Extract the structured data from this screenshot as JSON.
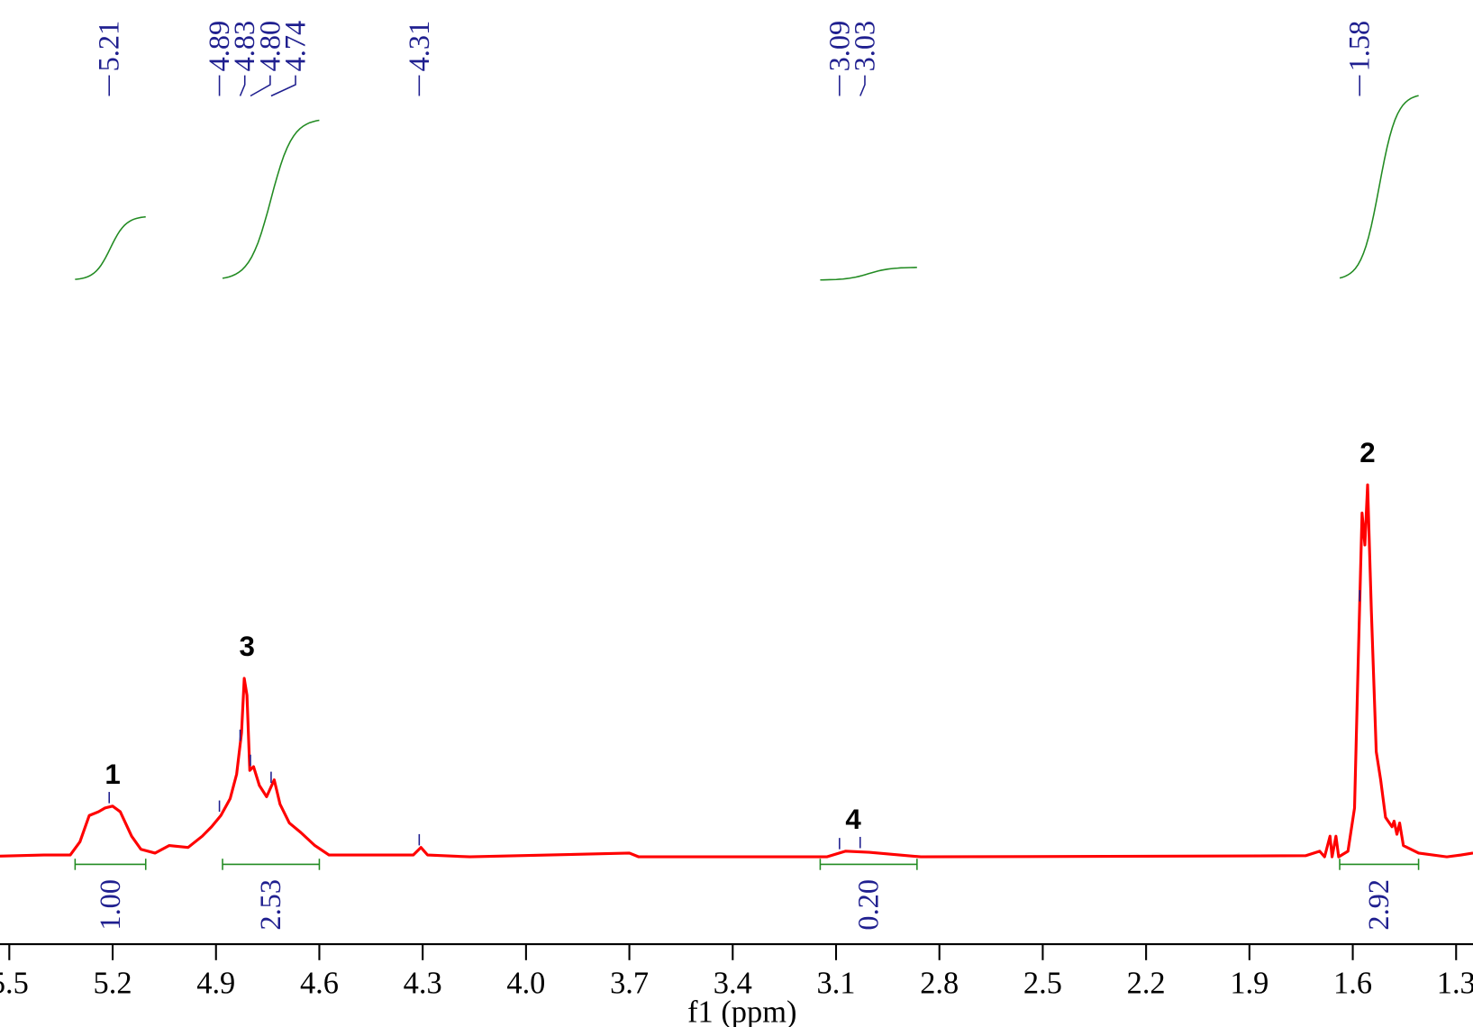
{
  "chart_data": {
    "type": "nmr",
    "xlabel": "f1 (ppm)",
    "xlim": [
      5.527,
      1.251
    ],
    "xticks": [
      5.5,
      5.2,
      4.9,
      4.6,
      4.3,
      {
        "value": 4,
        "label": "4.0"
      },
      3.7,
      3.4,
      3.1,
      2.8,
      2.5,
      2.2,
      1.9,
      1.6,
      1.3
    ],
    "ylim": [
      0,
      100
    ],
    "color": "#ff0000",
    "x": [
      5.527,
      5.4,
      5.323,
      5.295,
      5.268,
      5.241,
      5.222,
      5.2,
      5.178,
      5.145,
      5.118,
      5.077,
      5.036,
      4.981,
      4.94,
      4.913,
      4.886,
      4.859,
      4.84,
      4.826,
      4.818,
      4.81,
      4.802,
      4.791,
      4.774,
      4.753,
      4.731,
      4.714,
      4.687,
      4.654,
      4.613,
      4.572,
      4.436,
      4.327,
      4.305,
      4.286,
      4.163,
      3.7,
      3.673,
      3.127,
      3.073,
      3.004,
      2.854,
      1.737,
      1.696,
      1.682,
      1.666,
      1.66,
      1.649,
      1.641,
      1.614,
      1.595,
      1.584,
      1.573,
      1.565,
      1.557,
      1.546,
      1.532,
      1.519,
      1.505,
      1.486,
      1.48,
      1.472,
      1.464,
      1.453,
      1.409,
      1.327,
      1.286,
      1.251
    ],
    "values": [
      0.2,
      0.5,
      0.5,
      4,
      11,
      12,
      13,
      13.5,
      12,
      5.5,
      2,
      1,
      3,
      2.5,
      5.5,
      8,
      11,
      15.5,
      22,
      33,
      47.5,
      43,
      23,
      24,
      19,
      16,
      20.5,
      14,
      9,
      6.5,
      3,
      0.5,
      0.5,
      0.5,
      2.5,
      0.5,
      0,
      1,
      0,
      0,
      1.5,
      1.2,
      0,
      0.3,
      1.5,
      0,
      5.5,
      0,
      5.5,
      0,
      1.5,
      13,
      53,
      91.5,
      83,
      99,
      65.5,
      28,
      20.5,
      10.5,
      8,
      9.5,
      6,
      9,
      3,
      1,
      0,
      0.5,
      1
    ],
    "peaks": [
      5.21,
      4.89,
      4.83,
      {
        "value": 4.8,
        "label": "4.80"
      },
      4.74,
      4.31,
      3.09,
      3.03,
      1.58
    ],
    "peak_color": "#1f1f8f",
    "integrals": {
      "ranges": [
        [
          5.309,
          5.104
        ],
        [
          4.881,
          4.6
        ],
        [
          3.146,
          2.865
        ],
        [
          1.638,
          1.409
        ]
      ],
      "values": [
        1,
        2.53,
        0.2,
        2.92
      ],
      "value_labels": [
        "1.00",
        "2.53",
        "0.20",
        "2.92"
      ],
      "color": "#228b22"
    },
    "annotations": [
      {
        "text": "1",
        "x": 5.2
      },
      {
        "text": "3",
        "x": 4.81
      },
      {
        "text": "4",
        "x": 3.05
      },
      {
        "text": "2",
        "x": 1.557
      }
    ]
  }
}
